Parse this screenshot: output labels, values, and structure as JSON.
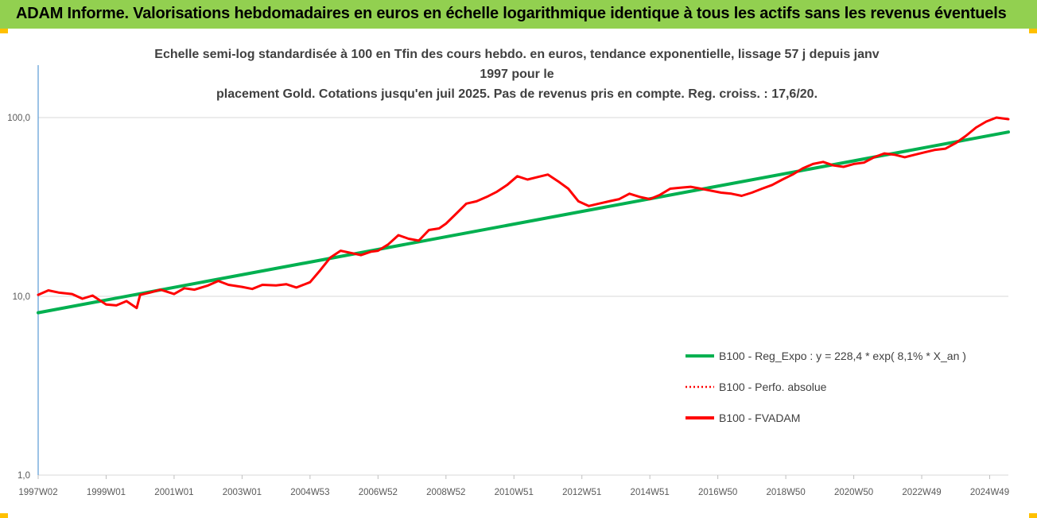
{
  "header": {
    "title": "ADAM Informe. Valorisations hebdomadaires en euros en échelle logarithmique identique à tous les actifs sans les revenus éventuels"
  },
  "chart_data": {
    "type": "line",
    "title": "Echelle semi-log standardisée à 100 en Tfin des cours hebdo. en euros, tendance exponentielle, lissage 57 j depuis janv 1997 pour le placement Gold. Cotations jusqu'en juil 2025. Pas de revenus pris en compte. Reg. croiss. : 17,6/20.",
    "title_lines": [
      "Echelle semi-log standardisée à 100 en Tfin des cours hebdo. en euros, tendance exponentielle, lissage 57 j depuis janv 1997 pour le",
      "placement Gold. Cotations jusqu'en juil 2025. Pas de revenus pris en compte. Reg. croiss. : 17,6/20."
    ],
    "y_scale": "log",
    "ylim": [
      1,
      160
    ],
    "y_ticks": [
      {
        "value": 1,
        "label": "1,0"
      },
      {
        "value": 10,
        "label": "10,0"
      },
      {
        "value": 100,
        "label": "100,0"
      }
    ],
    "x_range": [
      1997.0,
      2025.55
    ],
    "x_ticks": [
      {
        "x": 1997.0,
        "label": "1997W02"
      },
      {
        "x": 1999.0,
        "label": "1999W01"
      },
      {
        "x": 2001.0,
        "label": "2001W01"
      },
      {
        "x": 2003.0,
        "label": "2003W01"
      },
      {
        "x": 2005.0,
        "label": "2004W53"
      },
      {
        "x": 2007.0,
        "label": "2006W52"
      },
      {
        "x": 2009.0,
        "label": "2008W52"
      },
      {
        "x": 2011.0,
        "label": "2010W51"
      },
      {
        "x": 2013.0,
        "label": "2012W51"
      },
      {
        "x": 2015.0,
        "label": "2014W51"
      },
      {
        "x": 2017.0,
        "label": "2016W50"
      },
      {
        "x": 2019.0,
        "label": "2018W50"
      },
      {
        "x": 2021.0,
        "label": "2020W50"
      },
      {
        "x": 2023.0,
        "label": "2022W49"
      },
      {
        "x": 2025.0,
        "label": "2024W49"
      }
    ],
    "grid": "horizontal",
    "legend_position": "bottom-right",
    "series": [
      {
        "name": "B100 - Reg_Expo : y = 228,4 * exp( 8,1% *  X_an )",
        "style": "solid",
        "color": "#00b050",
        "x": [
          1997.0,
          2025.55
        ],
        "y": [
          8.1,
          83.0
        ]
      },
      {
        "name": "B100 - Perfo. absolue",
        "style": "dotted",
        "color": "#ff0000",
        "x": [],
        "y": []
      },
      {
        "name": "B100 - FVADAM",
        "style": "solid",
        "color": "#ff0000",
        "x": [
          1997.0,
          1997.3,
          1997.6,
          1998.0,
          1998.3,
          1998.6,
          1999.0,
          1999.3,
          1999.6,
          1999.9,
          2000.0,
          2000.3,
          2000.6,
          2001.0,
          2001.3,
          2001.6,
          2002.0,
          2002.3,
          2002.6,
          2003.0,
          2003.3,
          2003.6,
          2004.0,
          2004.3,
          2004.6,
          2005.0,
          2005.3,
          2005.6,
          2005.9,
          2006.2,
          2006.5,
          2006.8,
          2007.0,
          2007.3,
          2007.6,
          2007.9,
          2008.2,
          2008.5,
          2008.8,
          2009.0,
          2009.3,
          2009.6,
          2009.9,
          2010.2,
          2010.5,
          2010.8,
          2011.1,
          2011.4,
          2011.7,
          2012.0,
          2012.3,
          2012.6,
          2012.9,
          2013.2,
          2013.5,
          2013.8,
          2014.1,
          2014.4,
          2014.7,
          2015.0,
          2015.3,
          2015.6,
          2015.9,
          2016.2,
          2016.5,
          2016.8,
          2017.1,
          2017.4,
          2017.7,
          2018.0,
          2018.3,
          2018.6,
          2018.9,
          2019.2,
          2019.5,
          2019.8,
          2020.1,
          2020.4,
          2020.7,
          2021.0,
          2021.3,
          2021.6,
          2021.9,
          2022.2,
          2022.5,
          2022.8,
          2023.1,
          2023.4,
          2023.7,
          2024.0,
          2024.3,
          2024.6,
          2024.9,
          2025.2,
          2025.55
        ],
        "y": [
          10.2,
          10.8,
          10.5,
          10.3,
          9.7,
          10.1,
          9.0,
          8.9,
          9.4,
          8.6,
          10.2,
          10.5,
          10.9,
          10.3,
          11.1,
          10.9,
          11.5,
          12.2,
          11.6,
          11.3,
          11.0,
          11.6,
          11.5,
          11.7,
          11.2,
          12.0,
          14.0,
          16.5,
          18.0,
          17.5,
          17.0,
          17.8,
          18.0,
          19.5,
          22.0,
          21.0,
          20.5,
          23.5,
          24.0,
          25.5,
          29.0,
          33.0,
          34.0,
          36.0,
          38.5,
          42.0,
          47.0,
          45.0,
          46.5,
          48.0,
          44.0,
          40.0,
          34.0,
          32.0,
          33.0,
          34.0,
          35.0,
          37.5,
          36.0,
          35.0,
          37.0,
          40.0,
          40.5,
          41.0,
          40.0,
          39.0,
          38.0,
          37.5,
          36.5,
          38.0,
          40.0,
          42.0,
          45.0,
          48.0,
          52.0,
          55.0,
          56.5,
          54.0,
          53.0,
          55.0,
          56.0,
          60.0,
          63.0,
          62.0,
          60.0,
          62.0,
          64.0,
          66.0,
          67.0,
          72.0,
          79.0,
          88.0,
          95.0,
          100.0,
          98.0
        ]
      }
    ]
  }
}
